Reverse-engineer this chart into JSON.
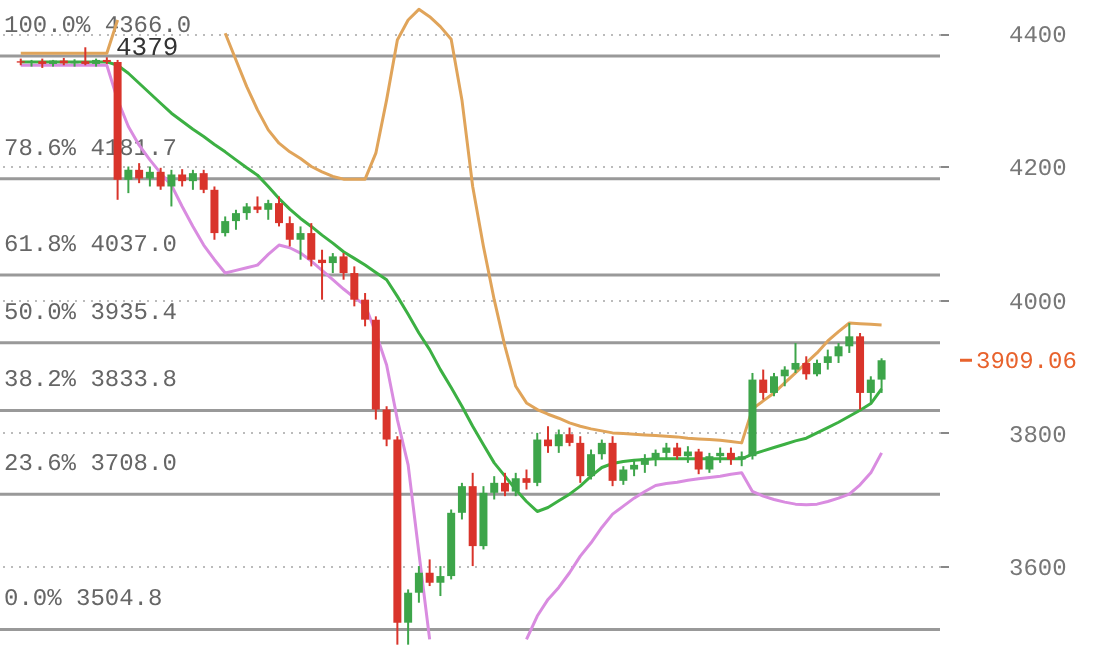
{
  "chart_data": {
    "type": "candlestick",
    "categories": [
      null,
      null,
      null,
      null,
      null,
      null,
      null,
      null,
      null,
      null,
      null,
      null,
      null,
      null,
      null,
      null,
      null,
      null,
      null,
      null,
      null,
      null,
      null,
      null,
      null,
      null,
      null,
      null,
      null,
      null,
      null,
      null,
      null,
      null,
      null,
      null,
      null,
      null,
      null,
      null,
      null,
      null,
      null,
      null,
      null,
      null,
      null,
      null,
      null,
      null,
      null,
      null,
      null,
      null,
      null,
      null,
      null,
      null,
      null,
      null,
      null,
      null,
      null,
      null,
      null,
      null,
      null,
      null,
      null,
      null,
      null,
      null,
      null,
      null,
      null,
      null,
      null,
      null,
      null,
      null,
      null
    ],
    "ohlc": [
      [
        4358,
        4362,
        4352,
        4356
      ],
      [
        4356,
        4360,
        4350,
        4358
      ],
      [
        4358,
        4362,
        4348,
        4354
      ],
      [
        4354,
        4360,
        4350,
        4359
      ],
      [
        4359,
        4363,
        4352,
        4355
      ],
      [
        4355,
        4361,
        4350,
        4358
      ],
      [
        4358,
        4379,
        4352,
        4354
      ],
      [
        4354,
        4362,
        4350,
        4360
      ],
      [
        4360,
        4364,
        4354,
        4357
      ],
      [
        4357,
        4360,
        4150,
        4180
      ],
      [
        4180,
        4200,
        4160,
        4195
      ],
      [
        4195,
        4205,
        4175,
        4182
      ],
      [
        4182,
        4200,
        4170,
        4192
      ],
      [
        4192,
        4198,
        4165,
        4170
      ],
      [
        4170,
        4195,
        4140,
        4188
      ],
      [
        4188,
        4196,
        4170,
        4178
      ],
      [
        4178,
        4195,
        4165,
        4190
      ],
      [
        4190,
        4195,
        4160,
        4165
      ],
      [
        4165,
        4170,
        4090,
        4100
      ],
      [
        4100,
        4125,
        4095,
        4118
      ],
      [
        4118,
        4135,
        4105,
        4130
      ],
      [
        4130,
        4145,
        4120,
        4140
      ],
      [
        4140,
        4155,
        4130,
        4135
      ],
      [
        4135,
        4150,
        4120,
        4145
      ],
      [
        4145,
        4155,
        4110,
        4115
      ],
      [
        4115,
        4125,
        4080,
        4090
      ],
      [
        4090,
        4110,
        4060,
        4100
      ],
      [
        4100,
        4115,
        4050,
        4060
      ],
      [
        4060,
        4075,
        4000,
        4055
      ],
      [
        4055,
        4070,
        4040,
        4065
      ],
      [
        4065,
        4070,
        4030,
        4040
      ],
      [
        4040,
        4050,
        3990,
        4000
      ],
      [
        4000,
        4010,
        3960,
        3970
      ],
      [
        3970,
        3975,
        3820,
        3835
      ],
      [
        3835,
        3840,
        3780,
        3790
      ],
      [
        3790,
        3795,
        3482,
        3515
      ],
      [
        3515,
        3565,
        3482,
        3560
      ],
      [
        3560,
        3600,
        3545,
        3590
      ],
      [
        3590,
        3610,
        3570,
        3575
      ],
      [
        3575,
        3600,
        3555,
        3585
      ],
      [
        3585,
        3685,
        3580,
        3680
      ],
      [
        3680,
        3725,
        3670,
        3720
      ],
      [
        3720,
        3740,
        3600,
        3630
      ],
      [
        3630,
        3720,
        3625,
        3710
      ],
      [
        3710,
        3735,
        3700,
        3725
      ],
      [
        3725,
        3740,
        3705,
        3712
      ],
      [
        3712,
        3740,
        3705,
        3732
      ],
      [
        3732,
        3745,
        3715,
        3725
      ],
      [
        3725,
        3800,
        3720,
        3790
      ],
      [
        3790,
        3810,
        3770,
        3780
      ],
      [
        3780,
        3805,
        3770,
        3798
      ],
      [
        3798,
        3808,
        3780,
        3785
      ],
      [
        3785,
        3795,
        3725,
        3735
      ],
      [
        3735,
        3775,
        3730,
        3768
      ],
      [
        3768,
        3790,
        3760,
        3785
      ],
      [
        3785,
        3795,
        3720,
        3728
      ],
      [
        3728,
        3750,
        3722,
        3745
      ],
      [
        3745,
        3760,
        3735,
        3752
      ],
      [
        3752,
        3768,
        3740,
        3762
      ],
      [
        3762,
        3775,
        3750,
        3770
      ],
      [
        3770,
        3785,
        3760,
        3778
      ],
      [
        3778,
        3785,
        3760,
        3765
      ],
      [
        3765,
        3780,
        3755,
        3772
      ],
      [
        3772,
        3776,
        3738,
        3745
      ],
      [
        3745,
        3770,
        3740,
        3765
      ],
      [
        3765,
        3778,
        3755,
        3770
      ],
      [
        3770,
        3778,
        3752,
        3760
      ],
      [
        3760,
        3772,
        3750,
        3765
      ],
      [
        3765,
        3890,
        3760,
        3880
      ],
      [
        3880,
        3895,
        3850,
        3860
      ],
      [
        3860,
        3890,
        3855,
        3885
      ],
      [
        3885,
        3900,
        3870,
        3895
      ],
      [
        3895,
        3935,
        3890,
        3905
      ],
      [
        3905,
        3915,
        3880,
        3888
      ],
      [
        3888,
        3910,
        3885,
        3905
      ],
      [
        3905,
        3925,
        3895,
        3915
      ],
      [
        3915,
        3935,
        3905,
        3930
      ],
      [
        3930,
        3965,
        3920,
        3945
      ],
      [
        3945,
        3950,
        3835,
        3860
      ],
      [
        3860,
        3885,
        3845,
        3880
      ],
      [
        3880,
        3912,
        3860,
        3909.06
      ]
    ],
    "colors": [
      "#d9342b",
      "#3da54a",
      "#d9342b",
      "#3da54a",
      "#d9342b",
      "#3da54a",
      "#d9342b",
      "#3da54a",
      "#d9342b",
      "#d9342b",
      "#3da54a",
      "#d9342b",
      "#3da54a",
      "#d9342b",
      "#3da54a",
      "#d9342b",
      "#3da54a",
      "#d9342b",
      "#d9342b",
      "#3da54a",
      "#3da54a",
      "#3da54a",
      "#d9342b",
      "#3da54a",
      "#d9342b",
      "#d9342b",
      "#3da54a",
      "#d9342b",
      "#d9342b",
      "#3da54a",
      "#d9342b",
      "#d9342b",
      "#d9342b",
      "#d9342b",
      "#d9342b",
      "#d9342b",
      "#3da54a",
      "#3da54a",
      "#d9342b",
      "#3da54a",
      "#3da54a",
      "#3da54a",
      "#d9342b",
      "#3da54a",
      "#3da54a",
      "#d9342b",
      "#3da54a",
      "#d9342b",
      "#3da54a",
      "#d9342b",
      "#3da54a",
      "#d9342b",
      "#d9342b",
      "#3da54a",
      "#3da54a",
      "#d9342b",
      "#3da54a",
      "#3da54a",
      "#3da54a",
      "#3da54a",
      "#3da54a",
      "#d9342b",
      "#3da54a",
      "#d9342b",
      "#3da54a",
      "#3da54a",
      "#d9342b",
      "#3da54a",
      "#3da54a",
      "#d9342b",
      "#3da54a",
      "#3da54a",
      "#3da54a",
      "#d9342b",
      "#3da54a",
      "#3da54a",
      "#3da54a",
      "#3da54a",
      "#d9342b",
      "#3da54a",
      "#3da54a"
    ],
    "series": [
      {
        "type": "line",
        "color": "#e0a45a",
        "values": [
          4370,
          4370,
          4370,
          4370,
          4370,
          4370,
          4370,
          4370,
          4370,
          4420,
          null,
          null,
          null,
          null,
          null,
          null,
          null,
          null,
          null,
          4400,
          4360,
          4320,
          4285,
          4255,
          4235,
          4222,
          4212,
          4200,
          4192,
          4185,
          4181,
          4181,
          4181,
          4220,
          4300,
          4390,
          4420,
          4436,
          4425,
          4410,
          4391,
          4300,
          4170,
          4080,
          4000,
          3930,
          3870,
          3845,
          3835,
          3828,
          3822,
          3815,
          3810,
          3806,
          3803,
          3800,
          3799,
          3798,
          3797,
          3796,
          3795,
          3794,
          3792,
          3791,
          3790,
          3789,
          3787,
          3785,
          3836,
          3848,
          3860,
          3875,
          3890,
          3905,
          3920,
          3938,
          3952,
          3965,
          3964,
          3963,
          3962
        ]
      },
      {
        "type": "line",
        "color": "#3cb043",
        "values": [
          4357,
          4357,
          4357,
          4357,
          4357,
          4357,
          4357,
          4357,
          4357,
          4352,
          4340,
          4325,
          4310,
          4295,
          4280,
          4268,
          4256,
          4245,
          4233,
          4222,
          4210,
          4198,
          4187,
          4170,
          4152,
          4136,
          4122,
          4110,
          4097,
          4085,
          4072,
          4062,
          4052,
          4041,
          4030,
          4005,
          3978,
          3950,
          3925,
          3895,
          3868,
          3840,
          3810,
          3782,
          3755,
          3735,
          3715,
          3697,
          3682,
          3688,
          3698,
          3708,
          3720,
          3735,
          3748,
          3754,
          3757,
          3759,
          3760,
          3761,
          3761,
          3761,
          3761,
          3761,
          3761,
          3761,
          3761,
          3761,
          3768,
          3773,
          3778,
          3783,
          3788,
          3792,
          3800,
          3808,
          3816,
          3825,
          3834,
          3844,
          3866
        ]
      },
      {
        "type": "line",
        "color": "#d98ce0",
        "values": [
          4352,
          4352,
          4352,
          4352,
          4352,
          4352,
          4352,
          4352,
          4352,
          4300,
          4260,
          4232,
          4210,
          4190,
          4172,
          4140,
          4110,
          4082,
          4060,
          4040,
          4044,
          4048,
          4052,
          4068,
          4082,
          4078,
          4070,
          4058,
          4044,
          4030,
          4016,
          4003,
          3992,
          3950,
          3902,
          3820,
          3752,
          3620,
          3490,
          null,
          null,
          null,
          null,
          null,
          null,
          null,
          null,
          3490,
          3525,
          3550,
          3568,
          3590,
          3615,
          3635,
          3658,
          3678,
          3690,
          3702,
          3712,
          3721,
          3724,
          3726,
          3729,
          3731,
          3733,
          3735,
          3738,
          3740,
          3712,
          3705,
          3700,
          3696,
          3693,
          3692,
          3693,
          3697,
          3702,
          3708,
          3722,
          3740,
          3770
        ]
      }
    ],
    "ylim": [
      3480,
      4450
    ],
    "yticks": [
      3600,
      3800,
      4000,
      4200,
      4400
    ],
    "tick_labels": "y",
    "grid": "y",
    "ref_lines": [
      {
        "axis": "y",
        "value": 4366.0,
        "label": "100.0% 4366.0",
        "color": "#999999"
      },
      {
        "axis": "y",
        "value": 4181.7,
        "label": "78.6% 4181.7",
        "color": "#999999"
      },
      {
        "axis": "y",
        "value": 4037.0,
        "label": "61.8% 4037.0",
        "color": "#999999"
      },
      {
        "axis": "y",
        "value": 3935.4,
        "label": "50.0% 3935.4",
        "color": "#999999"
      },
      {
        "axis": "y",
        "value": 3833.8,
        "label": "38.2% 3833.8",
        "color": "#999999"
      },
      {
        "axis": "y",
        "value": 3708.0,
        "label": "23.6% 3708.0",
        "color": "#999999"
      },
      {
        "axis": "y",
        "value": 3504.8,
        "label": "0.0% 3504.8",
        "color": "#999999"
      }
    ],
    "annotations": [
      {
        "text": "4379",
        "y": 4379
      },
      "3909.06"
    ]
  }
}
